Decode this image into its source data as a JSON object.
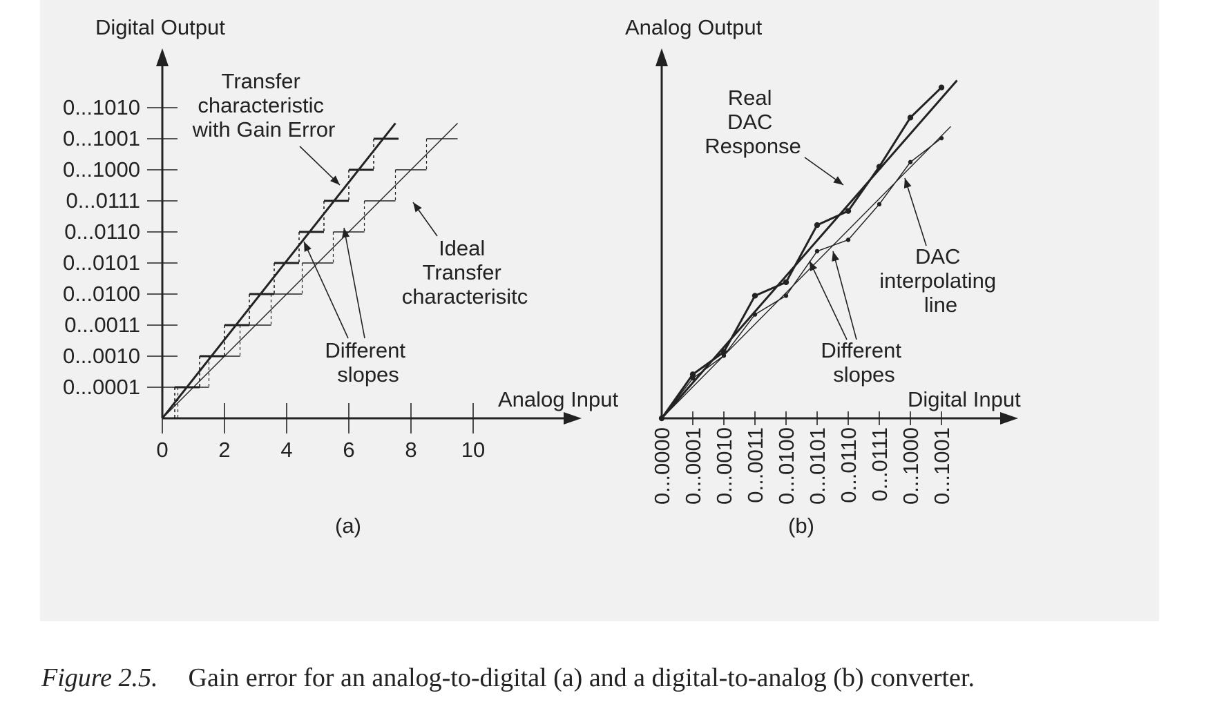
{
  "caption": {
    "figure_number": "Figure 2.5.",
    "text": "Gain error for an analog-to-digital (a) and a digital-to-analog (b) converter."
  },
  "colors": {
    "ink": "#222222",
    "panel_background": "#f1f1f1"
  },
  "panels": {
    "a": {
      "label": "(a)",
      "y_axis_label": "Digital Output",
      "x_axis_label": "Analog Input",
      "annotations": {
        "gain_error": [
          "Transfer",
          "characteristic",
          "with Gain Error"
        ],
        "ideal": [
          "Ideal",
          "Transfer",
          "characterisitc"
        ],
        "slopes": [
          "Different",
          "slopes"
        ]
      }
    },
    "b": {
      "label": "(b)",
      "y_axis_label": "Analog Output",
      "x_axis_label": "Digital Input",
      "annotations": {
        "real": [
          "Real",
          "DAC",
          "Response"
        ],
        "interp": [
          "DAC",
          "interpolating",
          "line"
        ],
        "slopes": [
          "Different",
          "slopes"
        ]
      }
    }
  },
  "chart_data": [
    {
      "type": "line",
      "panel": "a",
      "xlabel": "Analog Input",
      "ylabel": "Digital Output",
      "xlim": [
        0,
        13
      ],
      "ylim": [
        0,
        11
      ],
      "x_ticks": [
        0,
        2,
        4,
        6,
        8,
        10
      ],
      "y_ticks": [
        "0...0001",
        "0...0010",
        "0...0011",
        "0...0100",
        "0...0101",
        "0...0110",
        "0...0111",
        "0...1000",
        "0...1001",
        "0...1010"
      ],
      "series": [
        {
          "name": "Transfer characteristic with Gain Error",
          "style": "thick staircase",
          "line": [
            [
              0,
              0
            ],
            [
              7.5,
              9.5
            ]
          ],
          "steps": [
            {
              "x": [
                0.4,
                1.2
              ],
              "y": 1
            },
            {
              "x": [
                1.2,
                2.0
              ],
              "y": 2
            },
            {
              "x": [
                2.0,
                2.8
              ],
              "y": 3
            },
            {
              "x": [
                2.8,
                3.6
              ],
              "y": 4
            },
            {
              "x": [
                3.6,
                4.4
              ],
              "y": 5
            },
            {
              "x": [
                4.4,
                5.2
              ],
              "y": 6
            },
            {
              "x": [
                5.2,
                6.0
              ],
              "y": 7
            },
            {
              "x": [
                6.0,
                6.8
              ],
              "y": 8
            },
            {
              "x": [
                6.8,
                7.6
              ],
              "y": 9
            }
          ]
        },
        {
          "name": "Ideal Transfer characterisitc",
          "style": "thin staircase",
          "line": [
            [
              0,
              0
            ],
            [
              9.5,
              9.5
            ]
          ],
          "steps": [
            {
              "x": [
                0.5,
                1.5
              ],
              "y": 1
            },
            {
              "x": [
                1.5,
                2.5
              ],
              "y": 2
            },
            {
              "x": [
                2.5,
                3.5
              ],
              "y": 3
            },
            {
              "x": [
                3.5,
                4.5
              ],
              "y": 4
            },
            {
              "x": [
                4.5,
                5.5
              ],
              "y": 5
            },
            {
              "x": [
                5.5,
                6.5
              ],
              "y": 6
            },
            {
              "x": [
                6.5,
                7.5
              ],
              "y": 7
            },
            {
              "x": [
                7.5,
                8.5
              ],
              "y": 8
            },
            {
              "x": [
                8.5,
                9.5
              ],
              "y": 9
            }
          ]
        }
      ]
    },
    {
      "type": "line",
      "panel": "b",
      "xlabel": "Digital Input",
      "ylabel": "Analog Output",
      "xlim": [
        0,
        11
      ],
      "ylim": [
        0,
        11.5
      ],
      "categories": [
        "0...0000",
        "0...0001",
        "0...0010",
        "0...0011",
        "0...0100",
        "0...0101",
        "0...0110",
        "0...0111",
        "0...1000",
        "0...1001"
      ],
      "series": [
        {
          "name": "Real DAC Response",
          "style": "thick",
          "values": [
            0,
            1.43,
            2.16,
            3.99,
            4.43,
            6.29,
            6.75,
            8.19,
            9.79,
            10.77
          ],
          "fit_line": [
            [
              0,
              0
            ],
            [
              9.5,
              11.0
            ]
          ]
        },
        {
          "name": "DAC interpolating line",
          "style": "thin",
          "values": [
            0,
            1.3,
            2.04,
            3.38,
            3.99,
            5.44,
            5.81,
            6.97,
            8.34,
            9.12
          ],
          "fit_line": [
            [
              0,
              0
            ],
            [
              9.3,
              9.5
            ]
          ]
        }
      ]
    }
  ]
}
